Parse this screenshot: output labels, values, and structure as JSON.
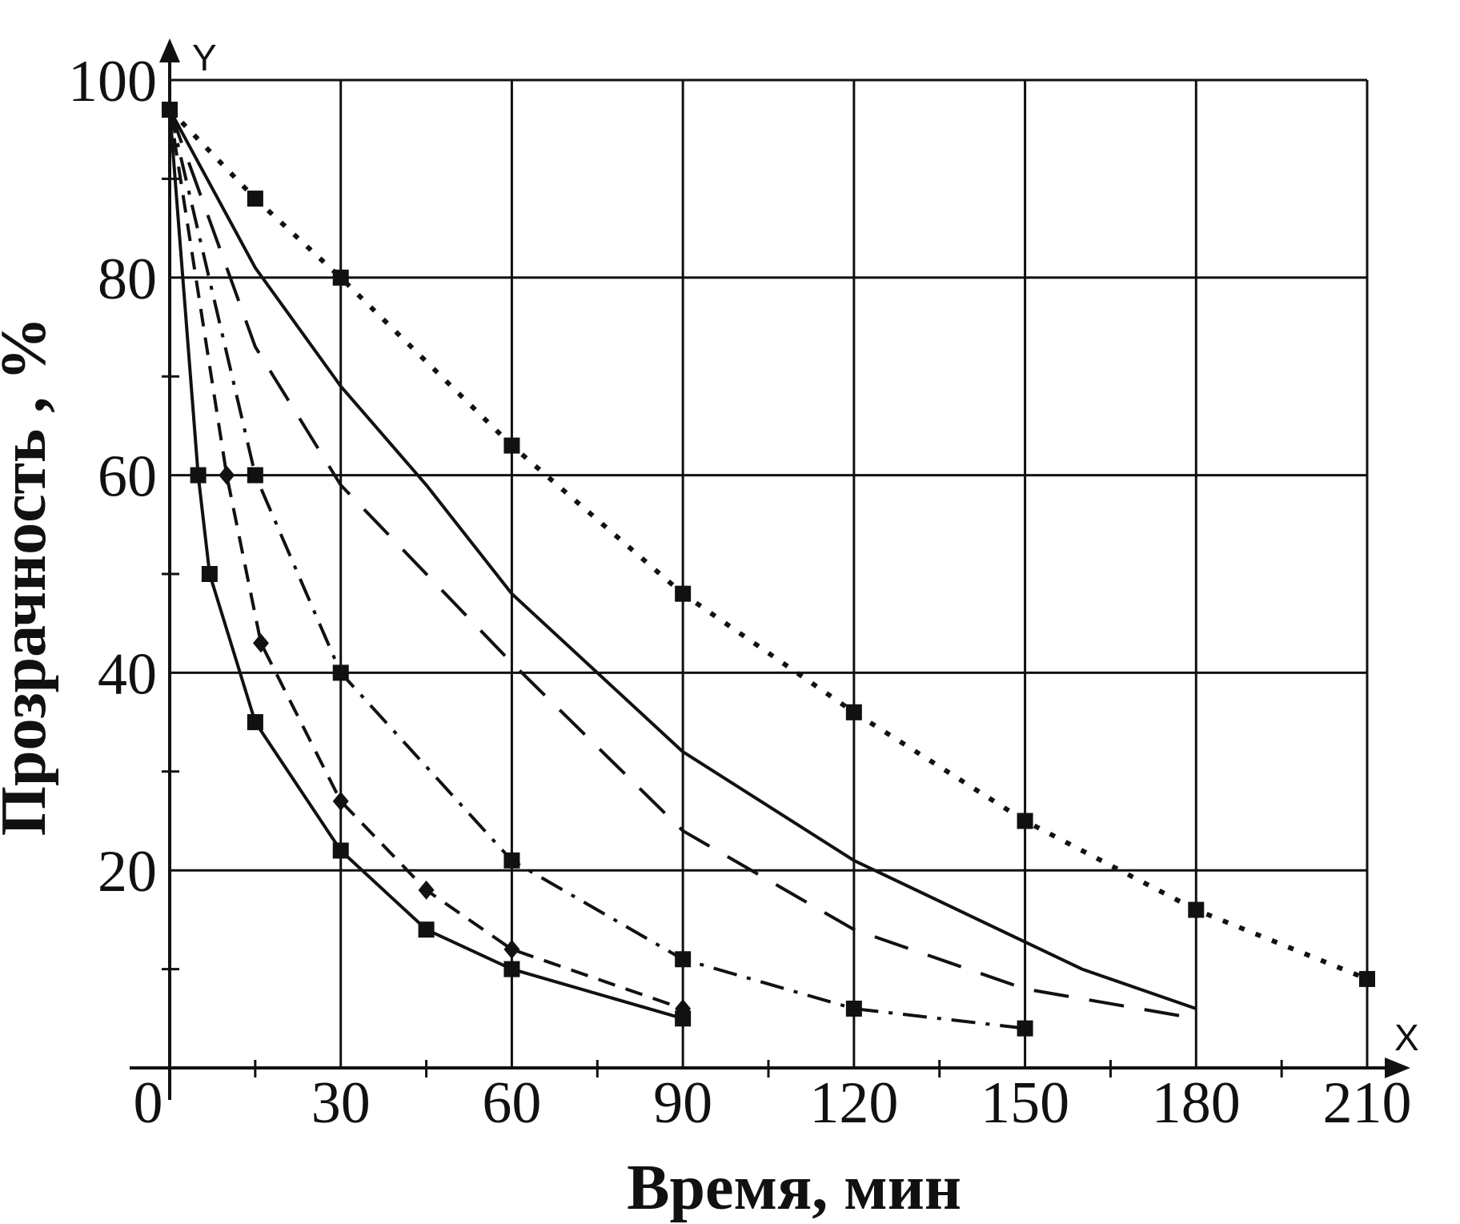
{
  "chart_data": {
    "type": "line",
    "xlabel": "Время, мин",
    "ylabel": "Прозрачность , %",
    "x_axis_letter": "X",
    "y_axis_letter": "Y",
    "origin_label": "0",
    "xlim": [
      0,
      210
    ],
    "ylim": [
      0,
      100
    ],
    "xticks": [
      30,
      60,
      90,
      120,
      150,
      180,
      210
    ],
    "yticks": [
      20,
      40,
      60,
      80,
      100
    ],
    "grid": true,
    "series": [
      {
        "style": "dotted",
        "marker": "square",
        "x": [
          0,
          15,
          30,
          60,
          90,
          120,
          150,
          180,
          210
        ],
        "y": [
          97,
          88,
          80,
          63,
          48,
          36,
          25,
          16,
          9
        ]
      },
      {
        "style": "solid",
        "marker": "none",
        "x": [
          0,
          15,
          30,
          45,
          60,
          90,
          120,
          160,
          180
        ],
        "y": [
          97,
          81,
          69,
          59,
          48,
          32,
          21,
          10,
          6
        ]
      },
      {
        "style": "long-dash",
        "marker": "none",
        "x": [
          0,
          15,
          30,
          60,
          90,
          120,
          150,
          180
        ],
        "y": [
          97,
          73,
          59,
          41,
          24,
          14,
          8,
          5
        ]
      },
      {
        "style": "dash-dot",
        "marker": "square",
        "x": [
          0,
          15,
          30,
          60,
          90,
          120,
          150
        ],
        "y": [
          97,
          60,
          40,
          21,
          11,
          6,
          4
        ]
      },
      {
        "style": "dashed",
        "marker": "diamond",
        "x": [
          0,
          10,
          16,
          30,
          45,
          60,
          90
        ],
        "y": [
          97,
          60,
          43,
          27,
          18,
          12,
          6
        ]
      },
      {
        "style": "solid",
        "marker": "square",
        "x": [
          0,
          5,
          7,
          15,
          30,
          45,
          60,
          90
        ],
        "y": [
          97,
          60,
          50,
          35,
          22,
          14,
          10,
          5
        ]
      }
    ]
  }
}
